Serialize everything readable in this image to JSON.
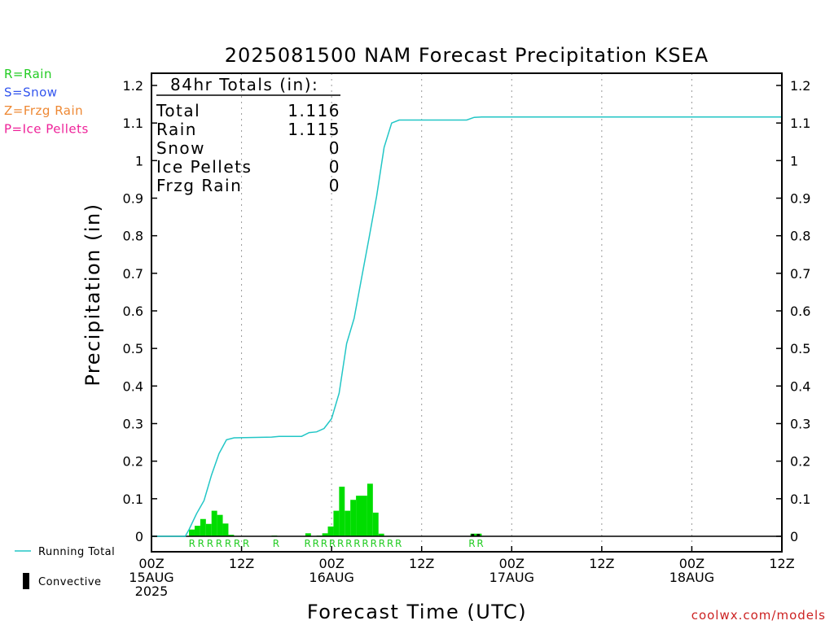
{
  "chart_data": {
    "type": "bar",
    "title": "2025081500 NAM Forecast Precipitation KSEA",
    "xlabel": "Forecast Time (UTC)",
    "ylabel": "Precipitation (in)",
    "ylim": [
      0,
      1.2
    ],
    "xlim_hours": [
      0,
      84
    ],
    "y_ticks": [
      0,
      0.1,
      0.2,
      0.3,
      0.4,
      0.5,
      0.6,
      0.7,
      0.8,
      0.9,
      1,
      1.1,
      1.2
    ],
    "y_tick_labels": [
      "0",
      "0.1",
      "0.2",
      "0.3",
      "0.4",
      "0.5",
      "0.6",
      "0.7",
      "0.8",
      "0.9",
      "1",
      "1.1",
      "1.2"
    ],
    "x_ticks": [
      {
        "hour": 0,
        "line1": "00Z",
        "line2": "15AUG",
        "line3": "2025"
      },
      {
        "hour": 12,
        "line1": "12Z",
        "line2": "",
        "line3": ""
      },
      {
        "hour": 24,
        "line1": "00Z",
        "line2": "16AUG",
        "line3": ""
      },
      {
        "hour": 36,
        "line1": "12Z",
        "line2": "",
        "line3": ""
      },
      {
        "hour": 48,
        "line1": "00Z",
        "line2": "17AUG",
        "line3": ""
      },
      {
        "hour": 60,
        "line1": "12Z",
        "line2": "",
        "line3": ""
      },
      {
        "hour": 72,
        "line1": "00Z",
        "line2": "18AUG",
        "line3": ""
      },
      {
        "hour": 84,
        "line1": "12Z",
        "line2": "",
        "line3": ""
      }
    ],
    "grid": "dotted vertical at 12-hour intervals",
    "legend_left": [
      {
        "text": "R=Rain",
        "color": "#22cc22"
      },
      {
        "text": "S=Snow",
        "color": "#3355ee"
      },
      {
        "text": "Z=Frzg Rain",
        "color": "#ee8833"
      },
      {
        "text": "P=Ice Pellets",
        "color": "#ee2299"
      }
    ],
    "legend_bottom": [
      {
        "text": "Running Total",
        "kind": "line",
        "color": "#22c6c6"
      },
      {
        "text": "Convective",
        "kind": "bar",
        "color": "#000000"
      }
    ],
    "totals_box": {
      "header": "84hr Totals (in):",
      "rows": [
        {
          "label": "Total",
          "value": "1.116"
        },
        {
          "label": "Rain",
          "value": "1.115"
        },
        {
          "label": "Snow",
          "value": "0"
        },
        {
          "label": "Ice Pellets",
          "value": "0"
        },
        {
          "label": "Frzg Rain",
          "value": "0"
        }
      ]
    },
    "series": [
      {
        "name": "Rain",
        "kind": "bar",
        "color": "#00dd00",
        "bar_width_hours": 0.75,
        "points": [
          {
            "x": 5,
            "y": 0.018
          },
          {
            "x": 5.75,
            "y": 0.028
          },
          {
            "x": 6.5,
            "y": 0.046
          },
          {
            "x": 7.25,
            "y": 0.033
          },
          {
            "x": 8,
            "y": 0.068
          },
          {
            "x": 8.75,
            "y": 0.057
          },
          {
            "x": 9.5,
            "y": 0.034
          },
          {
            "x": 10.25,
            "y": 0.004
          },
          {
            "x": 16,
            "y": 0.002
          },
          {
            "x": 20.5,
            "y": 0.008
          },
          {
            "x": 22,
            "y": 0.002
          },
          {
            "x": 22.75,
            "y": 0.008
          },
          {
            "x": 23.5,
            "y": 0.026
          },
          {
            "x": 24.25,
            "y": 0.068
          },
          {
            "x": 25,
            "y": 0.132
          },
          {
            "x": 25.75,
            "y": 0.068
          },
          {
            "x": 26.5,
            "y": 0.097
          },
          {
            "x": 27.25,
            "y": 0.108
          },
          {
            "x": 28,
            "y": 0.108
          },
          {
            "x": 28.75,
            "y": 0.14
          },
          {
            "x": 29.5,
            "y": 0.063
          },
          {
            "x": 30.25,
            "y": 0.007
          },
          {
            "x": 42.5,
            "y": 0.007
          },
          {
            "x": 43.25,
            "y": 0.007
          }
        ]
      },
      {
        "name": "Convective",
        "kind": "bar",
        "color": "#000000",
        "bar_width_hours": 0.4,
        "points": [
          {
            "x": 42.6,
            "y": 0.006
          },
          {
            "x": 43.35,
            "y": 0.006
          }
        ]
      },
      {
        "name": "Running Total",
        "kind": "line",
        "color": "#22c6c6",
        "points": [
          {
            "x": 0,
            "y": 0
          },
          {
            "x": 4.5,
            "y": 0
          },
          {
            "x": 5,
            "y": 0.018
          },
          {
            "x": 6,
            "y": 0.06
          },
          {
            "x": 7,
            "y": 0.095
          },
          {
            "x": 8,
            "y": 0.163
          },
          {
            "x": 9,
            "y": 0.22
          },
          {
            "x": 10,
            "y": 0.257
          },
          {
            "x": 11,
            "y": 0.262
          },
          {
            "x": 16,
            "y": 0.264
          },
          {
            "x": 17,
            "y": 0.266
          },
          {
            "x": 20,
            "y": 0.266
          },
          {
            "x": 21,
            "y": 0.276
          },
          {
            "x": 22,
            "y": 0.278
          },
          {
            "x": 23,
            "y": 0.287
          },
          {
            "x": 24,
            "y": 0.313
          },
          {
            "x": 25,
            "y": 0.381
          },
          {
            "x": 26,
            "y": 0.513
          },
          {
            "x": 27,
            "y": 0.58
          },
          {
            "x": 28,
            "y": 0.688
          },
          {
            "x": 29,
            "y": 0.795
          },
          {
            "x": 30,
            "y": 0.905
          },
          {
            "x": 31,
            "y": 1.035
          },
          {
            "x": 32,
            "y": 1.1
          },
          {
            "x": 33,
            "y": 1.108
          },
          {
            "x": 42,
            "y": 1.108
          },
          {
            "x": 43,
            "y": 1.115
          },
          {
            "x": 44,
            "y": 1.116
          },
          {
            "x": 84,
            "y": 1.116
          }
        ]
      }
    ],
    "ptype_markers": [
      {
        "x": 5.4,
        "text": "R"
      },
      {
        "x": 6.6,
        "text": "R"
      },
      {
        "x": 7.8,
        "text": "R"
      },
      {
        "x": 9.0,
        "text": "R"
      },
      {
        "x": 10.2,
        "text": "R"
      },
      {
        "x": 11.4,
        "text": "R"
      },
      {
        "x": 12.6,
        "text": "R"
      },
      {
        "x": 16.6,
        "text": "R"
      },
      {
        "x": 20.8,
        "text": "R"
      },
      {
        "x": 21.9,
        "text": "R"
      },
      {
        "x": 23.0,
        "text": "R"
      },
      {
        "x": 24.1,
        "text": "R"
      },
      {
        "x": 25.2,
        "text": "R"
      },
      {
        "x": 26.3,
        "text": "R"
      },
      {
        "x": 27.4,
        "text": "R"
      },
      {
        "x": 28.5,
        "text": "R"
      },
      {
        "x": 29.6,
        "text": "R"
      },
      {
        "x": 30.7,
        "text": "R"
      },
      {
        "x": 31.8,
        "text": "R"
      },
      {
        "x": 32.9,
        "text": "R"
      },
      {
        "x": 42.7,
        "text": "R"
      },
      {
        "x": 43.8,
        "text": "R"
      }
    ],
    "marker_color": "#22cc22",
    "watermark": "coolwx.com/models",
    "watermark_color": "#cc2222"
  }
}
